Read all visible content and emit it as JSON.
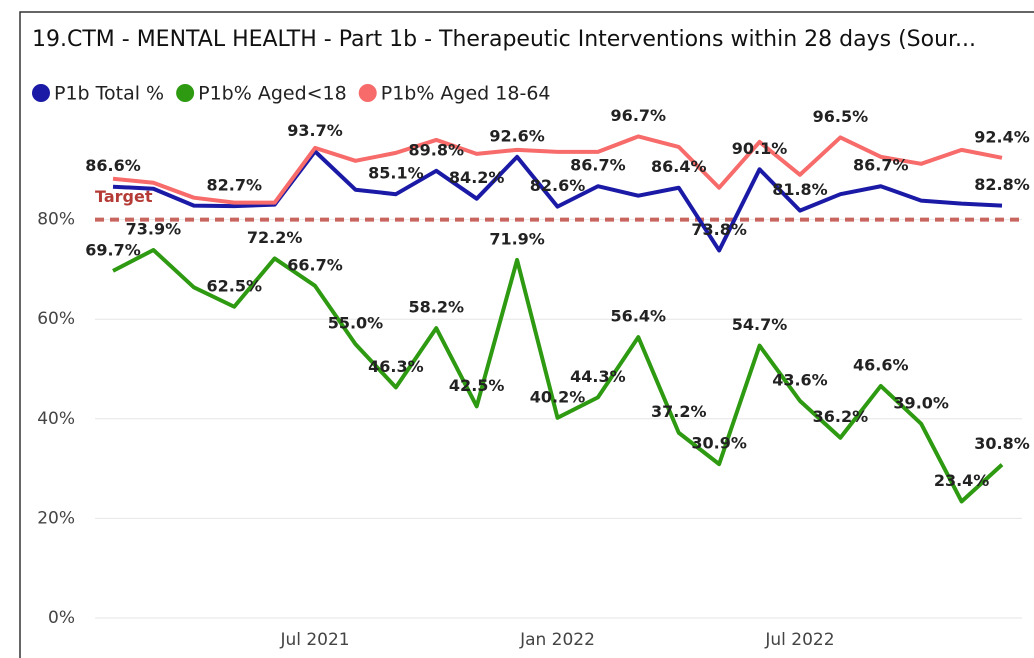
{
  "chart_data": {
    "type": "line",
    "title": "19.CTM - MENTAL HEALTH - Part 1b - Therapeutic Interventions within 28 days (Sour...",
    "categories": [
      null,
      null,
      null,
      null,
      null,
      "Jul 2021",
      null,
      null,
      null,
      null,
      null,
      "Jan 2022",
      null,
      null,
      null,
      null,
      null,
      "Jul 2022",
      null,
      null,
      null,
      null,
      null
    ],
    "series": [
      {
        "name": "P1b Total %",
        "color": "#1a1aa6",
        "values": [
          86.6,
          86.2,
          82.8,
          82.7,
          83.0,
          93.7,
          86.0,
          85.1,
          89.8,
          84.2,
          92.6,
          82.6,
          86.7,
          84.8,
          86.4,
          73.8,
          90.1,
          81.8,
          85.1,
          86.7,
          83.8,
          83.2,
          82.8
        ],
        "value_labels": [
          "86.6%",
          null,
          null,
          "82.7%",
          null,
          "93.7%",
          null,
          "85.1%",
          "89.8%",
          "84.2%",
          "92.6%",
          "82.6%",
          "86.7%",
          null,
          "86.4%",
          "73.8%",
          "90.1%",
          "81.8%",
          null,
          "86.7%",
          null,
          null,
          "82.8%"
        ]
      },
      {
        "name": "P1b% Aged<18",
        "color": "#2e9a12",
        "values": [
          69.7,
          73.9,
          66.4,
          62.5,
          72.2,
          66.7,
          55.0,
          46.3,
          58.2,
          42.5,
          71.9,
          40.2,
          44.3,
          56.4,
          37.2,
          30.9,
          54.7,
          43.6,
          36.2,
          46.6,
          39.0,
          23.4,
          30.8
        ],
        "value_labels": [
          "69.7%",
          "73.9%",
          null,
          "62.5%",
          "72.2%",
          "66.7%",
          "55.0%",
          "46.3%",
          "58.2%",
          "42.5%",
          "71.9%",
          "40.2%",
          "44.3%",
          "56.4%",
          "37.2%",
          "30.9%",
          "54.7%",
          "43.6%",
          "36.2%",
          "46.6%",
          "39.0%",
          "23.4%",
          "30.8%"
        ]
      },
      {
        "name": "P1b% Aged 18-64",
        "color": "#f76b6b",
        "values": [
          88.2,
          87.4,
          84.4,
          83.4,
          83.4,
          94.4,
          91.8,
          93.4,
          96.0,
          93.2,
          94.0,
          93.6,
          93.6,
          96.7,
          94.6,
          86.4,
          95.6,
          89.0,
          96.5,
          92.6,
          91.2,
          94.0,
          92.4
        ],
        "value_labels": [
          null,
          null,
          null,
          null,
          null,
          null,
          null,
          null,
          null,
          null,
          null,
          null,
          null,
          "96.7%",
          null,
          null,
          null,
          null,
          "96.5%",
          null,
          null,
          null,
          "92.4%"
        ]
      }
    ],
    "target": {
      "label": "Target",
      "value": 80,
      "color": "#c9655f"
    },
    "ylim": [
      0,
      100
    ],
    "yticks": [
      {
        "value": 0,
        "label": "0%"
      },
      {
        "value": 20,
        "label": "20%"
      },
      {
        "value": 40,
        "label": "40%"
      },
      {
        "value": 60,
        "label": "60%"
      },
      {
        "value": 80,
        "label": "80%"
      }
    ],
    "grid": true,
    "legend": "top-left"
  }
}
